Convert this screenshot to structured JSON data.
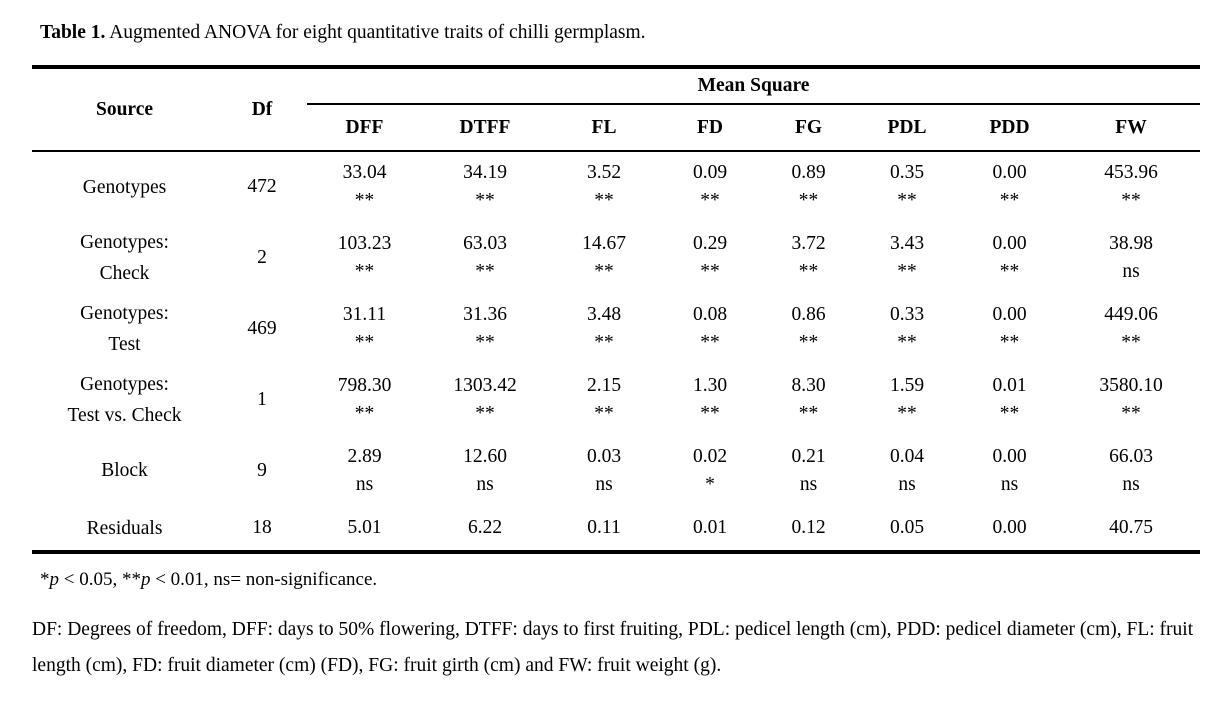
{
  "caption": {
    "label": "Table 1.",
    "text": " Augmented ANOVA for eight quantitative traits of chilli germplasm."
  },
  "table": {
    "headers": {
      "source": "Source",
      "df": "Df",
      "group": "Mean Square",
      "traits": [
        "DFF",
        "DTFF",
        "FL",
        "FD",
        "FG",
        "PDL",
        "PDD",
        "FW"
      ]
    },
    "rows": [
      {
        "source": [
          "Genotypes"
        ],
        "df": "472",
        "cells": [
          {
            "v": "33.04",
            "sig": "**"
          },
          {
            "v": "34.19",
            "sig": "**"
          },
          {
            "v": "3.52",
            "sig": "**"
          },
          {
            "v": "0.09",
            "sig": "**"
          },
          {
            "v": "0.89",
            "sig": "**"
          },
          {
            "v": "0.35",
            "sig": "**"
          },
          {
            "v": "0.00",
            "sig": "**"
          },
          {
            "v": "453.96",
            "sig": "**"
          }
        ]
      },
      {
        "source": [
          "Genotypes:",
          "Check"
        ],
        "df": "2",
        "cells": [
          {
            "v": "103.23",
            "sig": "**"
          },
          {
            "v": "63.03",
            "sig": "**"
          },
          {
            "v": "14.67",
            "sig": "**"
          },
          {
            "v": "0.29",
            "sig": "**"
          },
          {
            "v": "3.72",
            "sig": "**"
          },
          {
            "v": "3.43",
            "sig": "**"
          },
          {
            "v": "0.00",
            "sig": "**"
          },
          {
            "v": "38.98",
            "sig": "ns"
          }
        ]
      },
      {
        "source": [
          "Genotypes:",
          "Test"
        ],
        "df": "469",
        "cells": [
          {
            "v": "31.11",
            "sig": "**"
          },
          {
            "v": "31.36",
            "sig": "**"
          },
          {
            "v": "3.48",
            "sig": "**"
          },
          {
            "v": "0.08",
            "sig": "**"
          },
          {
            "v": "0.86",
            "sig": "**"
          },
          {
            "v": "0.33",
            "sig": "**"
          },
          {
            "v": "0.00",
            "sig": "**"
          },
          {
            "v": "449.06",
            "sig": "**"
          }
        ]
      },
      {
        "source": [
          "Genotypes:",
          "Test vs. Check"
        ],
        "df": "1",
        "cells": [
          {
            "v": "798.30",
            "sig": "**"
          },
          {
            "v": "1303.42",
            "sig": "**"
          },
          {
            "v": "2.15",
            "sig": "**"
          },
          {
            "v": "1.30",
            "sig": "**"
          },
          {
            "v": "8.30",
            "sig": "**"
          },
          {
            "v": "1.59",
            "sig": "**"
          },
          {
            "v": "0.01",
            "sig": "**"
          },
          {
            "v": "3580.10",
            "sig": "**"
          }
        ]
      },
      {
        "source": [
          "Block"
        ],
        "df": "9",
        "cells": [
          {
            "v": "2.89",
            "sig": "ns"
          },
          {
            "v": "12.60",
            "sig": "ns"
          },
          {
            "v": "0.03",
            "sig": "ns"
          },
          {
            "v": "0.02",
            "sig": "*"
          },
          {
            "v": "0.21",
            "sig": "ns"
          },
          {
            "v": "0.04",
            "sig": "ns"
          },
          {
            "v": "0.00",
            "sig": "ns"
          },
          {
            "v": "66.03",
            "sig": "ns"
          }
        ]
      },
      {
        "source": [
          "Residuals"
        ],
        "df": "18",
        "cells": [
          {
            "v": "5.01",
            "sig": ""
          },
          {
            "v": "6.22",
            "sig": ""
          },
          {
            "v": "0.11",
            "sig": ""
          },
          {
            "v": "0.01",
            "sig": ""
          },
          {
            "v": "0.12",
            "sig": ""
          },
          {
            "v": "0.05",
            "sig": ""
          },
          {
            "v": "0.00",
            "sig": ""
          },
          {
            "v": "40.75",
            "sig": ""
          }
        ]
      }
    ]
  },
  "footnotes": {
    "significance": [
      {
        "text": "*"
      },
      {
        "text": "p",
        "italic": true
      },
      {
        "text": " < 0.05, **"
      },
      {
        "text": "p",
        "italic": true
      },
      {
        "text": " < 0.01, ns= non-significance."
      }
    ],
    "abbreviations": "DF: Degrees of freedom, DFF: days to 50% flowering, DTFF: days to first fruiting, PDL: pedicel length (cm), PDD: pedicel diameter (cm), FL: fruit length (cm), FD: fruit diameter (cm) (FD), FG: fruit girth (cm) and FW: fruit weight (g)."
  }
}
